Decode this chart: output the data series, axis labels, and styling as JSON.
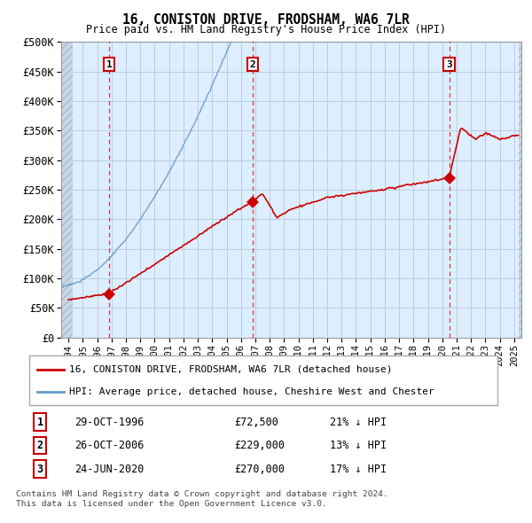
{
  "title": "16, CONISTON DRIVE, FRODSHAM, WA6 7LR",
  "subtitle": "Price paid vs. HM Land Registry's House Price Index (HPI)",
  "legend_label_red": "16, CONISTON DRIVE, FRODSHAM, WA6 7LR (detached house)",
  "legend_label_blue": "HPI: Average price, detached house, Cheshire West and Chester",
  "footer_line1": "Contains HM Land Registry data © Crown copyright and database right 2024.",
  "footer_line2": "This data is licensed under the Open Government Licence v3.0.",
  "sale_points": [
    {
      "label": "1",
      "date_x": 1996.83,
      "price": 72500,
      "date_str": "29-OCT-1996",
      "pct": "21% ↓ HPI"
    },
    {
      "label": "2",
      "date_x": 2006.83,
      "price": 229000,
      "date_str": "26-OCT-2006",
      "pct": "13% ↓ HPI"
    },
    {
      "label": "3",
      "date_x": 2020.48,
      "price": 270000,
      "date_str": "24-JUN-2020",
      "pct": "17% ↓ HPI"
    }
  ],
  "ylim": [
    0,
    500000
  ],
  "xlim": [
    1993.5,
    2025.5
  ],
  "yticks": [
    0,
    50000,
    100000,
    150000,
    200000,
    250000,
    300000,
    350000,
    400000,
    450000,
    500000
  ],
  "ytick_labels": [
    "£0",
    "£50K",
    "£100K",
    "£150K",
    "£200K",
    "£250K",
    "£300K",
    "£350K",
    "£400K",
    "£450K",
    "£500K"
  ],
  "xticks": [
    1994,
    1995,
    1996,
    1997,
    1998,
    1999,
    2000,
    2001,
    2002,
    2003,
    2004,
    2005,
    2006,
    2007,
    2008,
    2009,
    2010,
    2011,
    2012,
    2013,
    2014,
    2015,
    2016,
    2017,
    2018,
    2019,
    2020,
    2021,
    2022,
    2023,
    2024,
    2025
  ],
  "red_color": "#cc0000",
  "blue_color": "#6699cc",
  "chart_bg_color": "#ddeeff",
  "bg_color": "#ffffff",
  "grid_color": "#bbccdd",
  "hatch_color": "#c8d8e8"
}
